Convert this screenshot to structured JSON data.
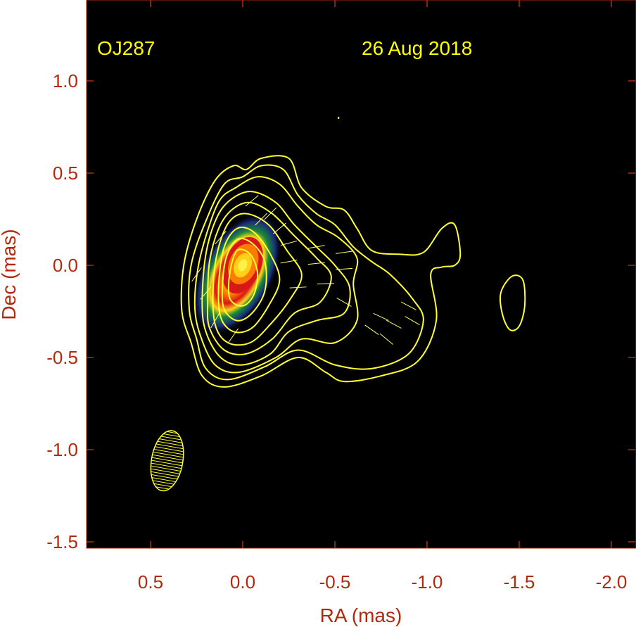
{
  "chart_data": {
    "type": "contour",
    "xlabel": "RA (mas)",
    "ylabel": "Dec (mas)",
    "xlim": [
      0.85,
      -2.12
    ],
    "ylim": [
      -1.55,
      1.4
    ],
    "x_reversed": true,
    "xticks": [
      0.5,
      0.0,
      -0.5,
      -1.0,
      -1.5,
      -2.0
    ],
    "xtick_labels": [
      "0.5",
      "0.0",
      "-0.5",
      "-1.0",
      "-1.5",
      "-2.0"
    ],
    "yticks": [
      1.0,
      0.5,
      0.0,
      -0.5,
      -1.0,
      -1.5
    ],
    "ytick_labels": [
      "1.0",
      "0.5",
      "0.0",
      "-0.5",
      "-1.0",
      "-1.5"
    ],
    "source_label": "OJ287",
    "date_label": "26 Aug 2018",
    "core_position": [
      0.0,
      0.0
    ],
    "background_color": "#000000",
    "contour_color": "#ffff33",
    "axis_text_color": "#b22a0e",
    "colormap": [
      "#1a2c7a",
      "#1a8a3a",
      "#ffd21a",
      "#ff7a00",
      "#d81818",
      "#fff14a"
    ],
    "beam": {
      "ra": 0.41,
      "dec": -1.06,
      "major_mas": 0.33,
      "minor_mas": 0.17,
      "pa_deg": 10
    },
    "contours": [
      [
        [
          0.28,
          -0.42
        ],
        [
          0.22,
          -0.6
        ],
        [
          0.1,
          -0.66
        ],
        [
          -0.1,
          -0.6
        ],
        [
          -0.3,
          -0.5
        ],
        [
          -0.45,
          -0.58
        ],
        [
          -0.55,
          -0.63
        ],
        [
          -0.75,
          -0.6
        ],
        [
          -0.95,
          -0.52
        ],
        [
          -1.05,
          -0.3
        ],
        [
          -1.02,
          -0.05
        ],
        [
          -1.08,
          -0.01
        ],
        [
          -1.15,
          0.0
        ],
        [
          -1.18,
          0.06
        ],
        [
          -1.15,
          0.22
        ],
        [
          -1.08,
          0.2
        ],
        [
          -0.98,
          0.07
        ],
        [
          -0.85,
          0.06
        ],
        [
          -0.7,
          0.08
        ],
        [
          -0.62,
          0.2
        ],
        [
          -0.55,
          0.3
        ],
        [
          -0.45,
          0.32
        ],
        [
          -0.32,
          0.42
        ],
        [
          -0.25,
          0.58
        ],
        [
          -0.1,
          0.58
        ],
        [
          -0.02,
          0.52
        ],
        [
          0.05,
          0.54
        ],
        [
          0.15,
          0.46
        ],
        [
          0.25,
          0.25
        ],
        [
          0.32,
          0.0
        ],
        [
          0.33,
          -0.25
        ]
      ],
      [
        [
          0.25,
          -0.4
        ],
        [
          0.2,
          -0.56
        ],
        [
          0.08,
          -0.62
        ],
        [
          -0.12,
          -0.55
        ],
        [
          -0.3,
          -0.46
        ],
        [
          -0.5,
          -0.54
        ],
        [
          -0.7,
          -0.56
        ],
        [
          -0.9,
          -0.48
        ],
        [
          -0.98,
          -0.3
        ],
        [
          -0.92,
          -0.18
        ],
        [
          -0.8,
          -0.05
        ],
        [
          -0.7,
          0.02
        ],
        [
          -0.6,
          0.1
        ],
        [
          -0.5,
          0.22
        ],
        [
          -0.4,
          0.28
        ],
        [
          -0.3,
          0.38
        ],
        [
          -0.22,
          0.52
        ],
        [
          -0.1,
          0.54
        ],
        [
          0.0,
          0.48
        ],
        [
          0.1,
          0.44
        ],
        [
          0.2,
          0.24
        ],
        [
          0.28,
          0.0
        ],
        [
          0.29,
          -0.24
        ]
      ],
      [
        [
          0.23,
          -0.38
        ],
        [
          0.15,
          -0.54
        ],
        [
          0.02,
          -0.58
        ],
        [
          -0.18,
          -0.5
        ],
        [
          -0.32,
          -0.4
        ],
        [
          -0.5,
          -0.42
        ],
        [
          -0.62,
          -0.3
        ],
        [
          -0.6,
          -0.1
        ],
        [
          -0.62,
          0.04
        ],
        [
          -0.52,
          0.15
        ],
        [
          -0.4,
          0.22
        ],
        [
          -0.3,
          0.32
        ],
        [
          -0.2,
          0.44
        ],
        [
          -0.08,
          0.48
        ],
        [
          0.04,
          0.42
        ],
        [
          0.12,
          0.36
        ],
        [
          0.18,
          0.22
        ],
        [
          0.24,
          0.0
        ],
        [
          0.26,
          -0.22
        ]
      ],
      [
        [
          0.2,
          -0.36
        ],
        [
          0.12,
          -0.5
        ],
        [
          0.0,
          -0.54
        ],
        [
          -0.15,
          -0.48
        ],
        [
          -0.25,
          -0.36
        ],
        [
          -0.4,
          -0.3
        ],
        [
          -0.55,
          -0.26
        ],
        [
          -0.58,
          -0.12
        ],
        [
          -0.5,
          0.0
        ],
        [
          -0.4,
          0.1
        ],
        [
          -0.28,
          0.22
        ],
        [
          -0.18,
          0.34
        ],
        [
          -0.05,
          0.4
        ],
        [
          0.06,
          0.36
        ],
        [
          0.14,
          0.26
        ],
        [
          0.2,
          0.06
        ],
        [
          0.22,
          -0.2
        ]
      ],
      [
        [
          0.18,
          -0.34
        ],
        [
          0.1,
          -0.46
        ],
        [
          -0.02,
          -0.48
        ],
        [
          -0.16,
          -0.4
        ],
        [
          -0.28,
          -0.26
        ],
        [
          -0.42,
          -0.2
        ],
        [
          -0.48,
          -0.06
        ],
        [
          -0.4,
          0.04
        ],
        [
          -0.28,
          0.16
        ],
        [
          -0.16,
          0.28
        ],
        [
          -0.04,
          0.34
        ],
        [
          0.06,
          0.3
        ],
        [
          0.13,
          0.2
        ],
        [
          0.18,
          0.02
        ],
        [
          0.19,
          -0.2
        ]
      ],
      [
        [
          0.15,
          -0.32
        ],
        [
          0.08,
          -0.42
        ],
        [
          -0.04,
          -0.42
        ],
        [
          -0.15,
          -0.32
        ],
        [
          -0.26,
          -0.18
        ],
        [
          -0.32,
          -0.05
        ],
        [
          -0.24,
          0.08
        ],
        [
          -0.14,
          0.22
        ],
        [
          -0.02,
          0.28
        ],
        [
          0.07,
          0.24
        ],
        [
          0.13,
          0.1
        ],
        [
          0.16,
          -0.1
        ]
      ],
      [
        [
          0.12,
          -0.28
        ],
        [
          0.05,
          -0.36
        ],
        [
          -0.05,
          -0.34
        ],
        [
          -0.14,
          -0.22
        ],
        [
          -0.2,
          -0.08
        ],
        [
          -0.15,
          0.06
        ],
        [
          -0.06,
          0.18
        ],
        [
          0.03,
          0.2
        ],
        [
          0.1,
          0.1
        ],
        [
          0.13,
          -0.1
        ]
      ],
      [
        [
          0.1,
          -0.24
        ],
        [
          0.03,
          -0.3
        ],
        [
          -0.05,
          -0.26
        ],
        [
          -0.12,
          -0.14
        ],
        [
          -0.12,
          0.02
        ],
        [
          -0.05,
          0.12
        ],
        [
          0.03,
          0.14
        ],
        [
          0.09,
          0.04
        ],
        [
          0.11,
          -0.12
        ]
      ],
      [
        [
          0.07,
          -0.18
        ],
        [
          0.0,
          -0.22
        ],
        [
          -0.06,
          -0.16
        ],
        [
          -0.08,
          -0.04
        ],
        [
          -0.04,
          0.06
        ],
        [
          0.03,
          0.08
        ],
        [
          0.07,
          -0.04
        ]
      ],
      [
        [
          -1.4,
          -0.15
        ],
        [
          -1.46,
          -0.06
        ],
        [
          -1.52,
          -0.08
        ],
        [
          -1.53,
          -0.22
        ],
        [
          -1.5,
          -0.33
        ],
        [
          -1.45,
          -0.35
        ],
        [
          -1.41,
          -0.27
        ]
      ]
    ],
    "evpa_vectors": [
      {
        "x": -0.25,
        "y": 0.12,
        "angle": 15
      },
      {
        "x": -0.4,
        "y": 0.1,
        "angle": 10
      },
      {
        "x": -0.55,
        "y": 0.07,
        "angle": 8
      },
      {
        "x": -0.25,
        "y": 0.02,
        "angle": 10
      },
      {
        "x": -0.4,
        "y": 0.01,
        "angle": 6
      },
      {
        "x": -0.55,
        "y": -0.02,
        "angle": 4
      },
      {
        "x": -0.3,
        "y": -0.12,
        "angle": 3
      },
      {
        "x": -0.45,
        "y": -0.1,
        "angle": 2
      },
      {
        "x": -0.55,
        "y": -0.2,
        "angle": -30
      },
      {
        "x": -0.2,
        "y": 0.2,
        "angle": 40
      },
      {
        "x": -0.15,
        "y": 0.28,
        "angle": 45
      },
      {
        "x": -0.05,
        "y": 0.35,
        "angle": 40
      },
      {
        "x": -0.75,
        "y": -0.28,
        "angle": -25
      },
      {
        "x": -0.82,
        "y": -0.32,
        "angle": -28
      },
      {
        "x": -0.9,
        "y": -0.22,
        "angle": -28
      },
      {
        "x": -0.78,
        "y": -0.4,
        "angle": -40
      },
      {
        "x": -0.7,
        "y": -0.35,
        "angle": -35
      },
      {
        "x": -0.92,
        "y": -0.3,
        "angle": -30
      },
      {
        "x": 0.2,
        "y": -0.15,
        "angle": 50
      },
      {
        "x": 0.15,
        "y": -0.3,
        "angle": 60
      },
      {
        "x": 0.25,
        "y": -0.05,
        "angle": 55
      },
      {
        "x": 0.05,
        "y": -0.38,
        "angle": 55
      },
      {
        "x": 0.12,
        "y": 0.15,
        "angle": 50
      },
      {
        "x": -0.1,
        "y": 0.25,
        "angle": 45
      }
    ],
    "stray_points": [
      [
        -0.52,
        0.8
      ]
    ]
  }
}
